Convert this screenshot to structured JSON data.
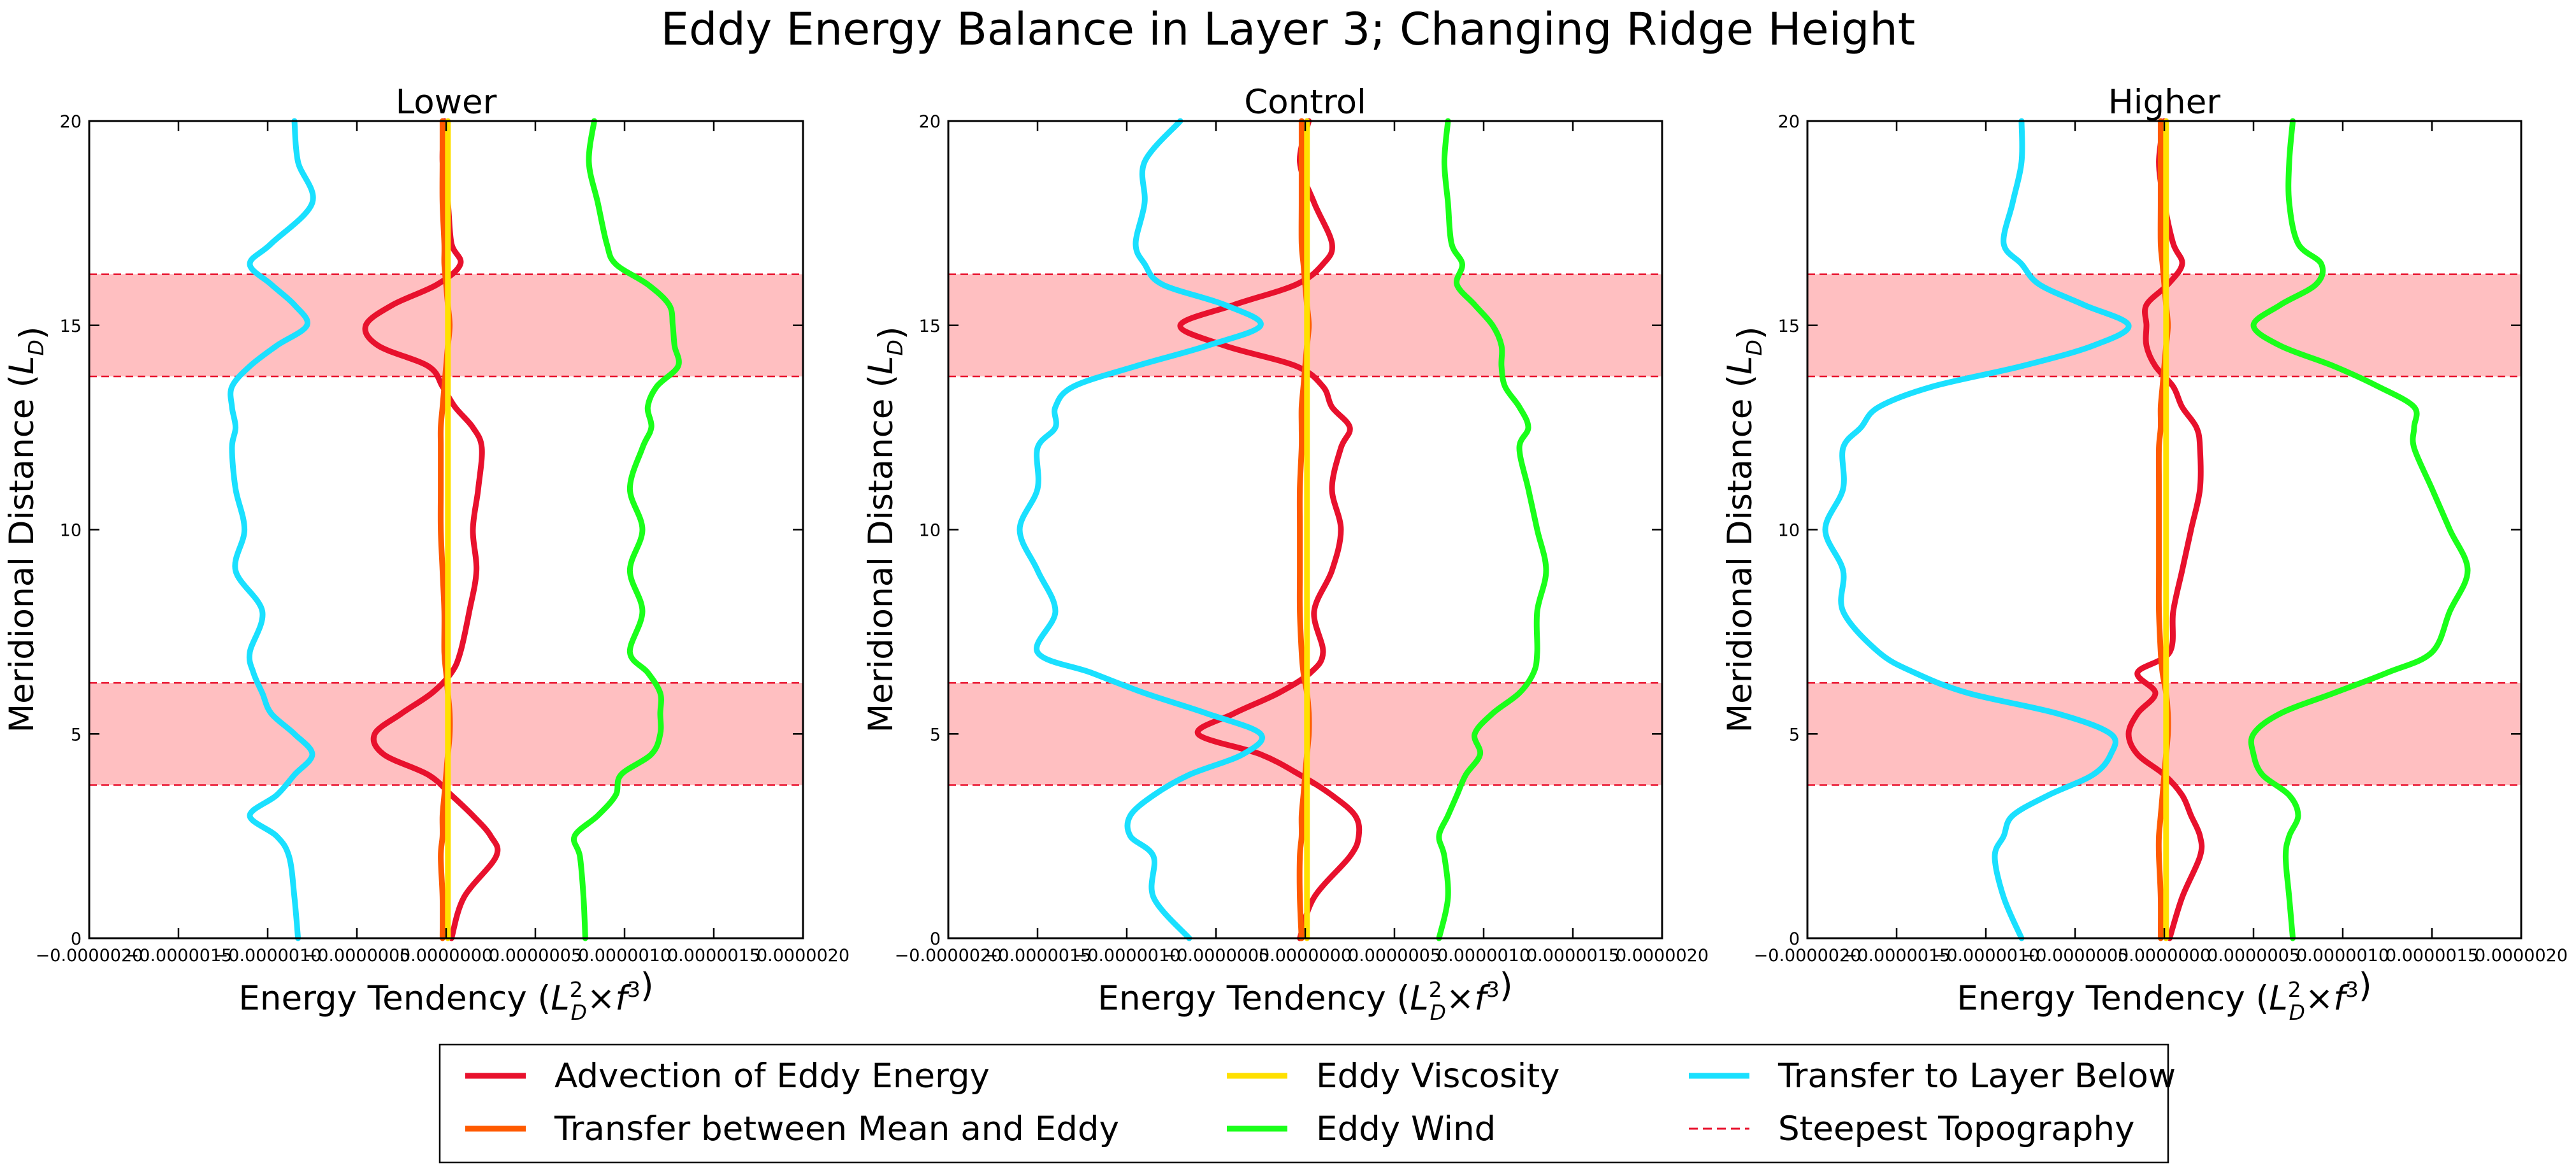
{
  "figure": {
    "suptitle": "Eddy Energy Balance in Layer 3; Changing Ridge Height"
  },
  "legend": {
    "items": [
      {
        "label": "Advection of Eddy Energy",
        "color": "#e8112d",
        "style": "solid"
      },
      {
        "label": "Transfer between Mean and Eddy",
        "color": "#ff5a00",
        "style": "solid"
      },
      {
        "label": "Eddy Viscosity",
        "color": "#ffe000",
        "style": "solid"
      },
      {
        "label": "Eddy Wind",
        "color": "#1aff1a",
        "style": "solid"
      },
      {
        "label": "Transfer to Layer Below",
        "color": "#1ae0ff",
        "style": "solid"
      },
      {
        "label": "Steepest Topography",
        "color": "#e8112d",
        "style": "dashed"
      }
    ]
  },
  "chart_data": [
    {
      "type": "line",
      "title": "Lower",
      "xlabel": "Energy Tendency ($L_D^2 \\times f^3$)",
      "ylabel": "Meridional Distance ($L_D$)",
      "xlim": [
        -2e-06,
        2e-06
      ],
      "ylim": [
        0,
        20
      ],
      "xticks": [
        "−0.0000020",
        "−0.0000015",
        "−0.0000010",
        "−0.0000005",
        "0.0000000",
        "0.0000005",
        "0.0000010",
        "0.0000015",
        "0.0000020"
      ],
      "yticks": [
        "0",
        "5",
        "10",
        "15",
        "20"
      ],
      "shaded_bands": [
        [
          3.75,
          6.25
        ],
        [
          13.75,
          16.25
        ]
      ],
      "y": [
        0,
        1,
        2,
        2.5,
        3,
        3.5,
        4,
        4.5,
        5,
        5.5,
        6,
        6.5,
        7,
        8,
        9,
        10,
        11,
        12,
        12.5,
        13,
        13.5,
        14,
        14.5,
        15,
        15.5,
        16,
        16.5,
        17,
        18,
        19,
        20
      ],
      "series": [
        {
          "name": "Advection of Eddy Energy",
          "color": "#e8112d",
          "values": [
            3e-08,
            1e-07,
            2.8e-07,
            2.5e-07,
            1.5e-07,
            3e-08,
            -1e-07,
            -3.5e-07,
            -4e-07,
            -2.5e-07,
            -8e-08,
            3e-08,
            8e-08,
            1.3e-07,
            1.7e-07,
            1.5e-07,
            1.8e-07,
            2e-07,
            1.5e-07,
            5e-08,
            -2e-08,
            -1e-07,
            -3.8e-07,
            -4.5e-07,
            -3e-07,
            -5e-08,
            8e-08,
            3e-08,
            1e-08,
            -2e-08,
            -1e-08
          ]
        },
        {
          "name": "Transfer between Mean and Eddy",
          "color": "#ff5a00",
          "values": [
            -2e-08,
            -2e-08,
            -3e-08,
            -2e-08,
            -2e-08,
            -1e-08,
            0,
            1e-08,
            2e-08,
            2e-08,
            1e-08,
            0,
            -1e-08,
            -1e-08,
            -2e-08,
            -3e-08,
            -3e-08,
            -3e-08,
            -3e-08,
            -2e-08,
            -1e-08,
            0,
            1e-08,
            2e-08,
            1e-08,
            0,
            -1e-08,
            -1e-08,
            -2e-08,
            -2e-08,
            -2e-08
          ]
        },
        {
          "name": "Eddy Viscosity",
          "color": "#ffe000",
          "values": [
            1e-08,
            1e-08,
            1e-08,
            1e-08,
            1e-08,
            1e-08,
            1e-08,
            1e-08,
            1e-08,
            1e-08,
            1e-08,
            1e-08,
            1e-08,
            1e-08,
            1e-08,
            1e-08,
            1e-08,
            1e-08,
            1e-08,
            1e-08,
            1e-08,
            1e-08,
            1e-08,
            1e-08,
            1e-08,
            1e-08,
            1e-08,
            1e-08,
            1e-08,
            1e-08,
            1e-08
          ]
        },
        {
          "name": "Eddy Wind",
          "color": "#1aff1a",
          "values": [
            7.8e-07,
            7.7e-07,
            7.5e-07,
            7.2e-07,
            8.5e-07,
            9.5e-07,
            9.8e-07,
            1.15e-06,
            1.2e-06,
            1.2e-06,
            1.2e-06,
            1.13e-06,
            1.03e-06,
            1.1e-06,
            1.03e-06,
            1.1e-06,
            1.03e-06,
            1.1e-06,
            1.15e-06,
            1.13e-06,
            1.18e-06,
            1.3e-06,
            1.28e-06,
            1.27e-06,
            1.25e-06,
            1.13e-06,
            9.5e-07,
            9e-07,
            8.5e-07,
            8e-07,
            8.3e-07
          ]
        },
        {
          "name": "Transfer to Layer Below",
          "color": "#1ae0ff",
          "values": [
            -8.3e-07,
            -8.5e-07,
            -8.8e-07,
            -9.5e-07,
            -1.1e-06,
            -9.5e-07,
            -8.5e-07,
            -7.5e-07,
            -8.5e-07,
            -9.8e-07,
            -1.03e-06,
            -1.08e-06,
            -1.1e-06,
            -1.03e-06,
            -1.18e-06,
            -1.13e-06,
            -1.18e-06,
            -1.2e-06,
            -1.18e-06,
            -1.2e-06,
            -1.2e-06,
            -1.1e-06,
            -9.5e-07,
            -7.8e-07,
            -8.5e-07,
            -9.8e-07,
            -1.1e-06,
            -9.8e-07,
            -7.5e-07,
            -8.3e-07,
            -8.5e-07
          ]
        }
      ]
    },
    {
      "type": "line",
      "title": "Control",
      "xlabel": "Energy Tendency ($L_D^2 \\times f^3$)",
      "ylabel": "Meridional Distance ($L_D$)",
      "xlim": [
        -2e-06,
        2e-06
      ],
      "ylim": [
        0,
        20
      ],
      "xticks": [
        "−0.0000020",
        "−0.0000015",
        "−0.0000010",
        "−0.0000005",
        "0.0000000",
        "0.0000005",
        "0.0000010",
        "0.0000015",
        "0.0000020"
      ],
      "yticks": [
        "0",
        "5",
        "10",
        "15",
        "20"
      ],
      "shaded_bands": [
        [
          3.75,
          6.25
        ],
        [
          13.75,
          16.25
        ]
      ],
      "y": [
        0,
        1,
        2,
        2.5,
        3,
        3.5,
        4,
        4.5,
        5,
        5.5,
        6,
        6.5,
        7,
        8,
        9,
        10,
        11,
        12,
        12.5,
        13,
        13.5,
        14,
        14.5,
        15,
        15.5,
        16,
        16.5,
        17,
        18,
        19,
        20
      ],
      "series": [
        {
          "name": "Advection of Eddy Energy",
          "color": "#e8112d",
          "values": [
            -3e-08,
            5e-08,
            2.5e-07,
            3e-07,
            2.8e-07,
            1.5e-07,
            -3e-08,
            -2.5e-07,
            -6e-07,
            -4e-07,
            -1.5e-07,
            3e-08,
            1e-07,
            5e-08,
            1.5e-07,
            2e-07,
            1.5e-07,
            2e-07,
            2.5e-07,
            1.5e-07,
            1e-07,
            -5e-08,
            -4.5e-07,
            -7e-07,
            -4e-07,
            -5e-08,
            1e-07,
            1.5e-07,
            5e-08,
            -3e-08,
            2e-08
          ]
        },
        {
          "name": "Transfer between Mean and Eddy",
          "color": "#ff5a00",
          "values": [
            -2e-08,
            -3e-08,
            -3e-08,
            -2e-08,
            -2e-08,
            -1e-08,
            0,
            1e-08,
            2e-08,
            2e-08,
            1e-08,
            -1e-08,
            -2e-08,
            -3e-08,
            -3e-08,
            -3e-08,
            -3e-08,
            -2e-08,
            -2e-08,
            -2e-08,
            -1e-08,
            0,
            1e-08,
            2e-08,
            1e-08,
            0,
            -1e-08,
            -2e-08,
            -2e-08,
            -2e-08,
            -2e-08
          ]
        },
        {
          "name": "Eddy Viscosity",
          "color": "#ffe000",
          "values": [
            1e-08,
            1e-08,
            1e-08,
            1e-08,
            1e-08,
            1e-08,
            1e-08,
            1e-08,
            1e-08,
            1e-08,
            1e-08,
            1e-08,
            1e-08,
            1e-08,
            1e-08,
            1e-08,
            1e-08,
            1e-08,
            1e-08,
            1e-08,
            1e-08,
            1e-08,
            1e-08,
            1e-08,
            1e-08,
            1e-08,
            1e-08,
            1e-08,
            1e-08,
            1e-08,
            1e-08
          ]
        },
        {
          "name": "Eddy Wind",
          "color": "#1aff1a",
          "values": [
            7.5e-07,
            8e-07,
            7.8e-07,
            7.5e-07,
            8e-07,
            8.5e-07,
            9e-07,
            9.8e-07,
            9.5e-07,
            1.05e-06,
            1.2e-06,
            1.28e-06,
            1.3e-06,
            1.3e-06,
            1.35e-06,
            1.3e-06,
            1.25e-06,
            1.2e-06,
            1.25e-06,
            1.2e-06,
            1.12e-06,
            1.1e-06,
            1.1e-06,
            1.05e-06,
            9.5e-07,
            8.5e-07,
            8.8e-07,
            8.2e-07,
            8e-07,
            7.8e-07,
            8e-07
          ]
        },
        {
          "name": "Transfer to Layer Below",
          "color": "#1ae0ff",
          "values": [
            -6.5e-07,
            -8.5e-07,
            -8.5e-07,
            -9.8e-07,
            -9.8e-07,
            -8.5e-07,
            -6.5e-07,
            -3.5e-07,
            -2.5e-07,
            -5.5e-07,
            -9e-07,
            -1.2e-06,
            -1.5e-06,
            -1.4e-06,
            -1.5e-06,
            -1.6e-06,
            -1.5e-06,
            -1.5e-06,
            -1.4e-06,
            -1.4e-06,
            -1.3e-06,
            -9.5e-07,
            -5.5e-07,
            -2.5e-07,
            -4.5e-07,
            -8e-07,
            -9e-07,
            -9.5e-07,
            -9e-07,
            -9e-07,
            -7e-07
          ]
        }
      ]
    },
    {
      "type": "line",
      "title": "Higher",
      "xlabel": "Energy Tendency ($L_D^2 \\times f^3$)",
      "ylabel": "Meridional Distance ($L_D$)",
      "xlim": [
        -2e-06,
        2e-06
      ],
      "ylim": [
        0,
        20
      ],
      "xticks": [
        "−0.0000020",
        "−0.0000015",
        "−0.0000010",
        "−0.0000005",
        "0.0000000",
        "0.0000005",
        "0.0000010",
        "0.0000015",
        "0.0000020"
      ],
      "yticks": [
        "0",
        "5",
        "10",
        "15",
        "20"
      ],
      "shaded_bands": [
        [
          3.75,
          6.25
        ],
        [
          13.75,
          16.25
        ]
      ],
      "y": [
        0,
        1,
        2,
        2.5,
        3,
        3.5,
        4,
        4.5,
        5,
        5.5,
        6,
        6.5,
        7,
        8,
        9,
        10,
        11,
        12,
        12.5,
        13,
        13.5,
        14,
        14.5,
        15,
        15.5,
        16,
        16.5,
        17,
        18,
        19,
        20
      ],
      "series": [
        {
          "name": "Advection of Eddy Energy",
          "color": "#e8112d",
          "values": [
            3e-08,
            1e-07,
            2e-07,
            2e-07,
            1.5e-07,
            1e-07,
            0,
            -1.5e-07,
            -2e-07,
            -1.5e-07,
            -5e-08,
            -1.5e-07,
            3e-08,
            5e-08,
            1e-07,
            1.5e-07,
            2e-07,
            2e-07,
            1.8e-07,
            1e-07,
            5e-08,
            -5e-08,
            -1e-07,
            -1e-07,
            -1e-07,
            2e-08,
            1e-07,
            5e-08,
            0,
            -3e-08,
            0
          ]
        },
        {
          "name": "Transfer between Mean and Eddy",
          "color": "#ff5a00",
          "values": [
            -2e-08,
            -2e-08,
            -3e-08,
            -3e-08,
            -2e-08,
            -1e-08,
            0,
            1e-08,
            2e-08,
            2e-08,
            1e-08,
            -1e-08,
            -2e-08,
            -3e-08,
            -3e-08,
            -3e-08,
            -3e-08,
            -3e-08,
            -2e-08,
            -2e-08,
            -1e-08,
            0,
            1e-08,
            2e-08,
            1e-08,
            0,
            -1e-08,
            -2e-08,
            -2e-08,
            -2e-08,
            -2e-08
          ]
        },
        {
          "name": "Eddy Viscosity",
          "color": "#ffe000",
          "values": [
            1e-08,
            1e-08,
            1e-08,
            1e-08,
            1e-08,
            1e-08,
            1e-08,
            1e-08,
            1e-08,
            1e-08,
            1e-08,
            1e-08,
            1e-08,
            1e-08,
            1e-08,
            1e-08,
            1e-08,
            1e-08,
            1e-08,
            1e-08,
            1e-08,
            1e-08,
            1e-08,
            1e-08,
            1e-08,
            1e-08,
            1e-08,
            1e-08,
            1e-08,
            1e-08,
            1e-08
          ]
        },
        {
          "name": "Eddy Wind",
          "color": "#1aff1a",
          "values": [
            7.2e-07,
            7e-07,
            6.8e-07,
            7e-07,
            7.5e-07,
            7e-07,
            5.5e-07,
            5e-07,
            5e-07,
            6.5e-07,
            9.5e-07,
            1.25e-06,
            1.5e-06,
            1.6e-06,
            1.7e-06,
            1.6e-06,
            1.5e-06,
            1.4e-06,
            1.4e-06,
            1.4e-06,
            1.2e-06,
            9.5e-07,
            6.5e-07,
            5e-07,
            6.5e-07,
            8.5e-07,
            8.8e-07,
            7.5e-07,
            7e-07,
            7e-07,
            7.2e-07
          ]
        },
        {
          "name": "Transfer to Layer Below",
          "color": "#1ae0ff",
          "values": [
            -8e-07,
            -9e-07,
            -9.5e-07,
            -9e-07,
            -8.5e-07,
            -6.5e-07,
            -4e-07,
            -3e-07,
            -3e-07,
            -6e-07,
            -1.1e-06,
            -1.4e-06,
            -1.6e-06,
            -1.8e-06,
            -1.8e-06,
            -1.9e-06,
            -1.8e-06,
            -1.8e-06,
            -1.7e-06,
            -1.6e-06,
            -1.3e-06,
            -8e-07,
            -4e-07,
            -2e-07,
            -4.5e-07,
            -7e-07,
            -8e-07,
            -9e-07,
            -8.5e-07,
            -8e-07,
            -8e-07
          ]
        }
      ]
    }
  ]
}
